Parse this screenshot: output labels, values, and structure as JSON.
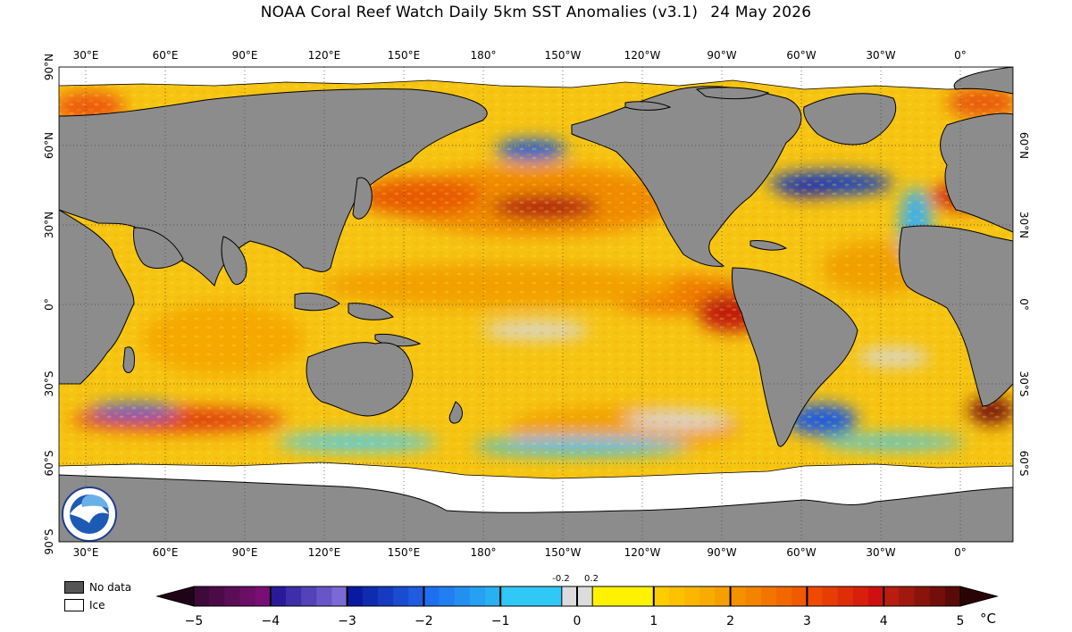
{
  "title": "NOAA Coral Reef Watch Daily 5km SST Anomalies  (v3.1)",
  "date": "24 May 2026",
  "map": {
    "lon_labels": [
      "30°E",
      "60°E",
      "90°E",
      "120°E",
      "150°E",
      "180°",
      "150°W",
      "120°W",
      "90°W",
      "60°W",
      "30°W",
      "0°"
    ],
    "lat_labels_left": [
      "90°N",
      "60°N",
      "30°N",
      "0°",
      "30°S",
      "60°S",
      "90°S"
    ],
    "lat_labels_right": [
      "60°N",
      "30°N",
      "0°",
      "30°S",
      "60°S"
    ],
    "colors": {
      "land": "#8c8c8c",
      "ocean_base": "#f5c40f",
      "nodata": "#555555",
      "ice": "#ffffff"
    },
    "logo_text": "NOAA"
  },
  "legend": {
    "nodata_label": "No data",
    "ice_label": "Ice",
    "nodata_color": "#555555",
    "ice_color": "#ffffff"
  },
  "colorbar": {
    "ticks": [
      "−5",
      "−4",
      "−3",
      "−2",
      "−1",
      "0",
      "1",
      "2",
      "3",
      "4",
      "5"
    ],
    "small_ticks": [
      "-0.2",
      "0.2"
    ],
    "unit": "°C",
    "bands": [
      {
        "from": -5,
        "to": -4,
        "colors": [
          "#3d0a3a",
          "#7a0f73"
        ]
      },
      {
        "from": -4,
        "to": -3,
        "colors": [
          "#2a1a9a",
          "#7b6ad6"
        ]
      },
      {
        "from": -3,
        "to": -2,
        "colors": [
          "#0a1aa0",
          "#1f5ce0"
        ]
      },
      {
        "from": -2,
        "to": -1,
        "colors": [
          "#1e6ff0",
          "#28b0f0"
        ]
      },
      {
        "from": -1,
        "to": -0.2,
        "colors": [
          "#30c8f5",
          "#6fe3f7"
        ]
      },
      {
        "from": -0.2,
        "to": 0.2,
        "colors": [
          "#dcdcdc",
          "#dcdcdc"
        ]
      },
      {
        "from": 0.2,
        "to": 1,
        "colors": [
          "#fff200",
          "#ffd400"
        ]
      },
      {
        "from": 1,
        "to": 2,
        "colors": [
          "#ffcc00",
          "#f5a000"
        ]
      },
      {
        "from": 2,
        "to": 3,
        "colors": [
          "#f59000",
          "#f05a00"
        ]
      },
      {
        "from": 3,
        "to": 4,
        "colors": [
          "#ee4a00",
          "#d01010"
        ]
      },
      {
        "from": 4,
        "to": 5,
        "colors": [
          "#b81d10",
          "#5a0a08"
        ]
      }
    ]
  }
}
